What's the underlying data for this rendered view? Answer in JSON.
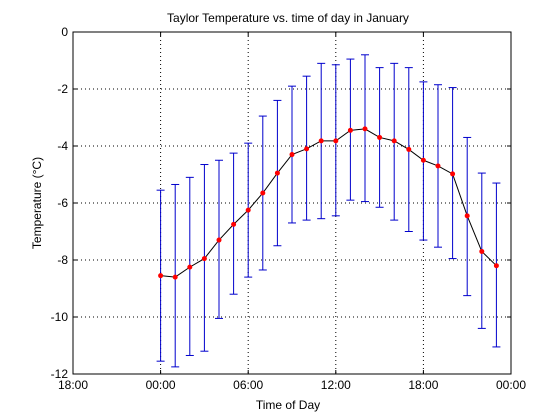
{
  "chart_data": {
    "type": "line",
    "title": "Taylor Temperature vs. time of day in January",
    "xlabel": "Time of Day",
    "ylabel": "Temperature (°C)",
    "xlim": [
      -6,
      24
    ],
    "ylim": [
      -12,
      0
    ],
    "grid": true,
    "x_ticks": [
      {
        "value": -6,
        "label": "18:00"
      },
      {
        "value": 0,
        "label": "00:00"
      },
      {
        "value": 6,
        "label": "06:00"
      },
      {
        "value": 12,
        "label": "12:00"
      },
      {
        "value": 18,
        "label": "18:00"
      },
      {
        "value": 24,
        "label": "00:00"
      }
    ],
    "y_ticks": [
      {
        "value": -12,
        "label": "-12"
      },
      {
        "value": -10,
        "label": "-10"
      },
      {
        "value": -8,
        "label": "-8"
      },
      {
        "value": -6,
        "label": "-6"
      },
      {
        "value": -4,
        "label": "-4"
      },
      {
        "value": -2,
        "label": "-2"
      },
      {
        "value": 0,
        "label": "0"
      }
    ],
    "series": [
      {
        "x": [
          0,
          1,
          2,
          3,
          4,
          5,
          6,
          7,
          8,
          9,
          10,
          11,
          12,
          13,
          14,
          15,
          16,
          17,
          18,
          19,
          20,
          21,
          22,
          23
        ],
        "mean": [
          -8.55,
          -8.6,
          -8.25,
          -7.95,
          -7.3,
          -6.75,
          -6.25,
          -5.65,
          -4.95,
          -4.3,
          -4.1,
          -3.82,
          -3.82,
          -3.45,
          -3.4,
          -3.7,
          -3.82,
          -4.12,
          -4.5,
          -4.7,
          -4.98,
          -6.45,
          -7.7,
          -8.2
        ],
        "lower": [
          -11.55,
          -11.75,
          -11.35,
          -11.2,
          -10.05,
          -9.2,
          -8.6,
          -8.35,
          -7.5,
          -6.7,
          -6.6,
          -6.55,
          -6.45,
          -5.9,
          -5.95,
          -6.15,
          -6.6,
          -7.0,
          -7.3,
          -7.55,
          -7.95,
          -9.25,
          -10.4,
          -11.05
        ],
        "upper": [
          -5.55,
          -5.35,
          -5.1,
          -4.65,
          -4.5,
          -4.25,
          -3.9,
          -2.95,
          -2.4,
          -1.9,
          -1.55,
          -1.1,
          -1.15,
          -0.95,
          -0.8,
          -1.25,
          -1.1,
          -1.25,
          -1.75,
          -1.85,
          -1.95,
          -3.7,
          -4.95,
          -5.3
        ]
      }
    ],
    "colors": {
      "line": "#000000",
      "markers": "#ff0000",
      "errorbars": "#0000cc",
      "grid": "#000000"
    }
  }
}
